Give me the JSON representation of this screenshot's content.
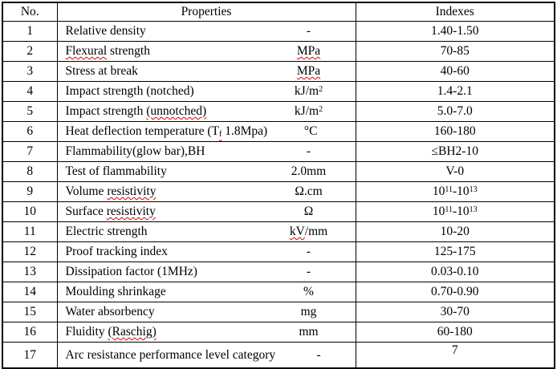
{
  "table": {
    "headers": {
      "no": "No.",
      "properties": "Properties",
      "indexes": "Indexes"
    },
    "rows": [
      {
        "no": "1",
        "name": "Relative density",
        "unit": "-",
        "index": "1.40-1.50"
      },
      {
        "no": "2",
        "name": [
          {
            "t": "Flexural",
            "sq": 1
          },
          {
            "t": " strength"
          }
        ],
        "unit": [
          {
            "t": "MPa",
            "sq": 1
          }
        ],
        "index": "70-85"
      },
      {
        "no": "3",
        "name": "Stress at break",
        "unit": [
          {
            "t": "MPa",
            "sq": 1
          }
        ],
        "index": "40-60"
      },
      {
        "no": "4",
        "name": "Impact strength (notched)",
        "unit": [
          {
            "t": "kJ/m"
          },
          {
            "t": "2",
            "sup": 1
          }
        ],
        "index": "1.4-2.1"
      },
      {
        "no": "5",
        "name": [
          {
            "t": "Impact strength "
          },
          {
            "t": "(unnotched)",
            "sq": 1
          }
        ],
        "unit": [
          {
            "t": "kJ/m"
          },
          {
            "t": "2",
            "sup": 1
          }
        ],
        "index": "5.0-7.0"
      },
      {
        "no": "6",
        "name": [
          {
            "t": "Heat deflection temperature (T"
          },
          {
            "t": "f",
            "sub": 1,
            "sq": 1
          },
          {
            "t": " 1.8Mpa)"
          }
        ],
        "unit": "°C",
        "index": "160-180"
      },
      {
        "no": "7",
        "name": "Flammability(glow bar),BH",
        "unit": "-",
        "index": "≤BH2-10"
      },
      {
        "no": "8",
        "name": "Test of flammability",
        "unit": "2.0mm",
        "index": "V-0"
      },
      {
        "no": "9",
        "name": [
          {
            "t": "Volume "
          },
          {
            "t": "resistivity",
            "sq": 1
          }
        ],
        "unit": "Ω.cm",
        "index": [
          {
            "t": "10"
          },
          {
            "t": "11",
            "sup": 1
          },
          {
            "t": "-10"
          },
          {
            "t": "13",
            "sup": 1
          }
        ]
      },
      {
        "no": "10",
        "name": [
          {
            "t": "Surface "
          },
          {
            "t": "resistivity",
            "sq": 1
          }
        ],
        "unit": "Ω",
        "index": [
          {
            "t": "10"
          },
          {
            "t": "11",
            "sup": 1
          },
          {
            "t": "-10"
          },
          {
            "t": "13",
            "sup": 1
          }
        ]
      },
      {
        "no": "11",
        "name": "Electric strength",
        "unit": [
          {
            "t": "kV",
            "sq": 1
          },
          {
            "t": "/mm"
          }
        ],
        "index": "10-20"
      },
      {
        "no": "12",
        "name": "Proof tracking index",
        "unit": "-",
        "index": "125-175"
      },
      {
        "no": "13",
        "name": "Dissipation factor (1MHz)",
        "unit": "-",
        "index": "0.03-0.10"
      },
      {
        "no": "14",
        "name": "Moulding shrinkage",
        "unit": "%",
        "index": "0.70-0.90"
      },
      {
        "no": "15",
        "name": "Water absorbency",
        "unit": "mg",
        "index": "30-70"
      },
      {
        "no": "16",
        "name": [
          {
            "t": "Fluidity "
          },
          {
            "t": "(Raschig)",
            "sq": 1
          }
        ],
        "unit": "mm",
        "index": "60-180"
      },
      {
        "no": "17",
        "name": "Arc resistance performance level category",
        "unit": "-",
        "index": "7",
        "index_valign": "top"
      }
    ]
  },
  "colors": {
    "border": "#000000",
    "text": "#000000",
    "spellcheck_underline": "#e00000",
    "background": "#ffffff"
  }
}
